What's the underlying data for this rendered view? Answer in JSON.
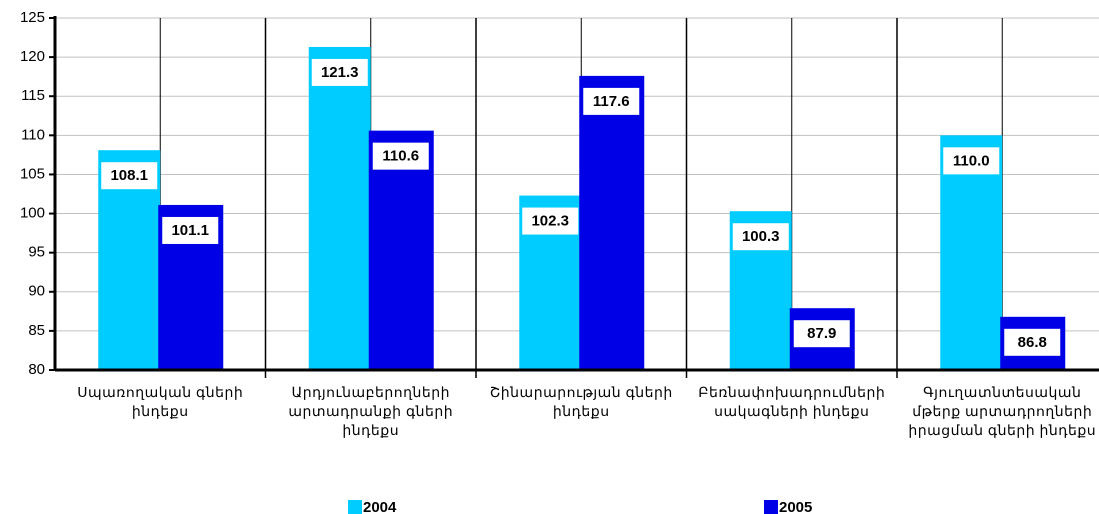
{
  "chart_data": {
    "type": "bar",
    "categories": [
      "Սպառողական գների ինդեքս",
      "Արդյունաբերողների արտադրանքի գների ինդեքս",
      "Շինարարության գների ինդեքս",
      "Բեռնափոխադրումների սակագների ինդեքս",
      "Գյուղատնտեսական մթերք արտադրողների իրացման գների ինդեքս"
    ],
    "series": [
      {
        "name": "2004",
        "color": "#00ccff",
        "values": [
          108.1,
          121.3,
          102.3,
          100.3,
          110.0
        ],
        "value_labels": [
          "108.1",
          "121.3",
          "102.3",
          "100.3",
          "110.0"
        ]
      },
      {
        "name": "2005",
        "color": "#0000e6",
        "values": [
          101.1,
          110.6,
          117.6,
          87.9,
          86.8
        ],
        "value_labels": [
          "101.1",
          "110.6",
          "117.6",
          "87.9",
          "86.8"
        ]
      }
    ],
    "ylim": [
      80,
      125
    ],
    "yticks": [
      80,
      85,
      90,
      95,
      100,
      105,
      110,
      115,
      120,
      125
    ],
    "grid": true
  }
}
